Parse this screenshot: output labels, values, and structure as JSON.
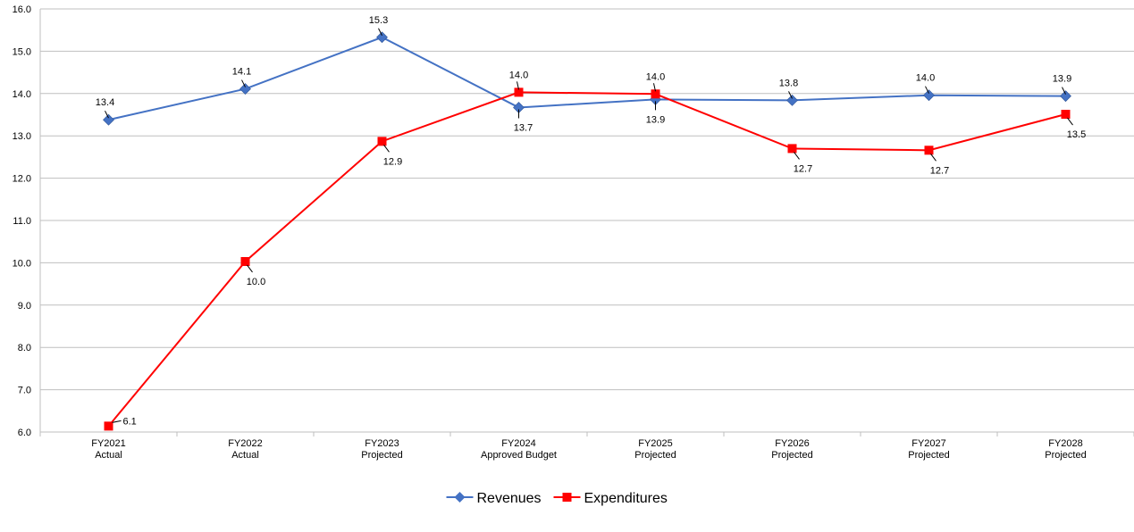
{
  "chart_data": {
    "type": "line",
    "categories": [
      [
        "FY2021",
        "Actual"
      ],
      [
        "FY2022",
        "Actual"
      ],
      [
        "FY2023",
        "Projected"
      ],
      [
        "FY2024",
        "Approved Budget"
      ],
      [
        "FY2025",
        "Projected"
      ],
      [
        "FY2026",
        "Projected"
      ],
      [
        "FY2027",
        "Projected"
      ],
      [
        "FY2028",
        "Projected"
      ]
    ],
    "ylim": [
      6.0,
      16.0
    ],
    "yticks": [
      "6.0",
      "7.0",
      "8.0",
      "9.0",
      "10.0",
      "11.0",
      "12.0",
      "13.0",
      "14.0",
      "15.0",
      "16.0"
    ],
    "grid": true,
    "legend_position": "bottom",
    "series": [
      {
        "name": "Revenues",
        "color": "#4472C4",
        "marker": "diamond",
        "values": [
          13.38,
          14.11,
          15.33,
          13.67,
          13.86,
          13.84,
          13.96,
          13.94
        ],
        "labels": [
          "13.4",
          "14.1",
          "15.3",
          "13.7",
          "13.9",
          "13.8",
          "14.0",
          "13.9"
        ]
      },
      {
        "name": "Expenditures",
        "color": "#FF0000",
        "marker": "square",
        "values": [
          6.14,
          10.03,
          12.87,
          14.03,
          13.99,
          12.7,
          12.66,
          13.51
        ],
        "labels": [
          "6.1",
          "10.0",
          "12.9",
          "14.0",
          "14.0",
          "12.7",
          "12.7",
          "13.5"
        ]
      }
    ]
  }
}
